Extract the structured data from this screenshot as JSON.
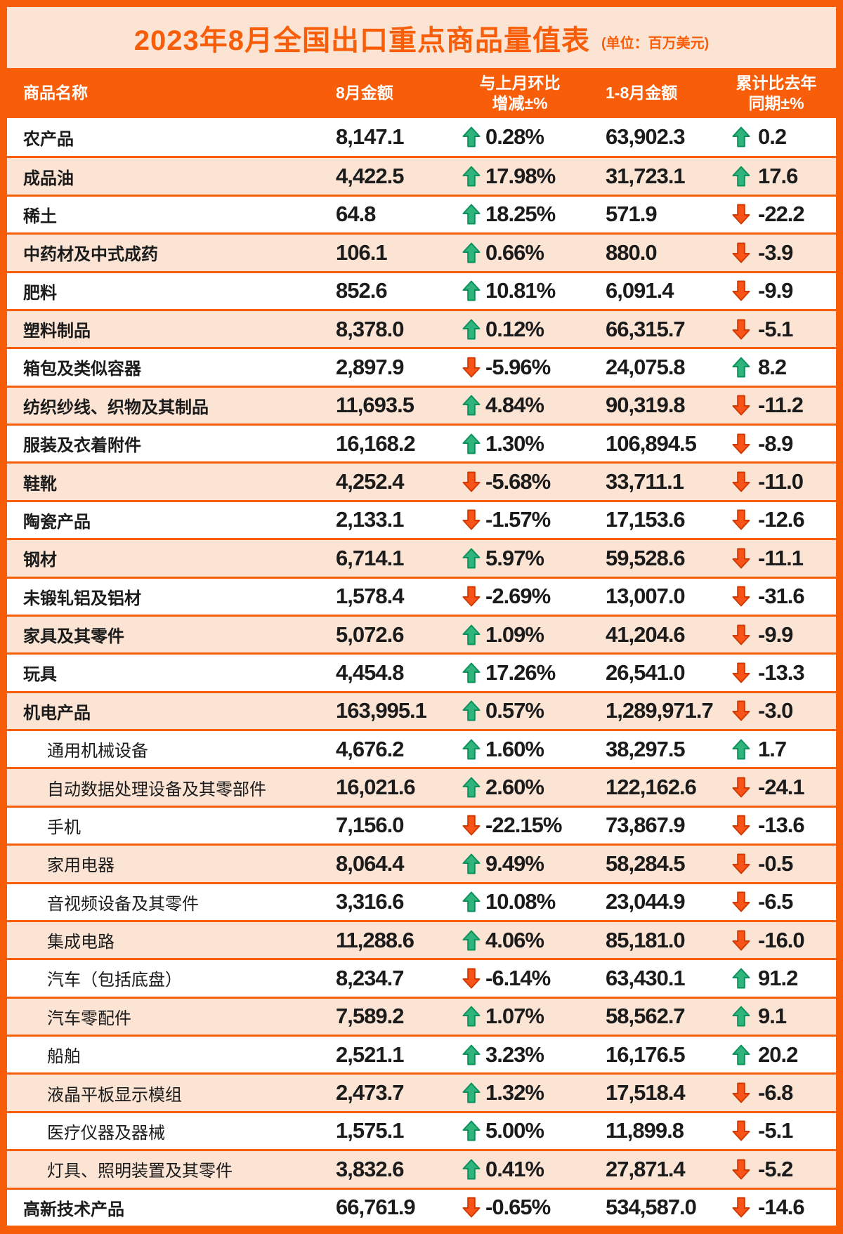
{
  "title": {
    "text": "2023年8月全国出口重点商品量值表",
    "unit": "(单位：百万美元)"
  },
  "header": {
    "col_name": "商品名称",
    "col_aug": "8月金额",
    "col_mom_line1": "与上月环比",
    "col_mom_line2": "增减±%",
    "col_ytd": "1-8月金额",
    "col_yoy_line1": "累计比去年",
    "col_yoy_line2": "同期±%"
  },
  "colors": {
    "orange": "#F85E09",
    "peach": "#FCE4D5",
    "up_green": "#2FB57C",
    "up_green_stroke": "#0D8F5B",
    "down_orange": "#F95318",
    "down_orange_stroke": "#CE3A02",
    "text": "#1B1B1B",
    "header_text": "#FFFFFF"
  },
  "chart_data": {
    "type": "table",
    "title": "2023年8月全国出口重点商品量值表",
    "unit": "百万美元",
    "columns": [
      "商品名称",
      "8月金额",
      "与上月环比增减±%",
      "1-8月金额",
      "累计比去年同期±%"
    ],
    "rows": [
      {
        "name": "农产品",
        "indent": false,
        "aug": "8,147.1",
        "mom": "0.28%",
        "mom_dir": "up",
        "ytd": "63,902.3",
        "yoy": "0.2",
        "yoy_dir": "up"
      },
      {
        "name": "成品油",
        "indent": false,
        "aug": "4,422.5",
        "mom": "17.98%",
        "mom_dir": "up",
        "ytd": "31,723.1",
        "yoy": "17.6",
        "yoy_dir": "up"
      },
      {
        "name": "稀土",
        "indent": false,
        "aug": "64.8",
        "mom": "18.25%",
        "mom_dir": "up",
        "ytd": "571.9",
        "yoy": "-22.2",
        "yoy_dir": "down"
      },
      {
        "name": "中药材及中式成药",
        "indent": false,
        "aug": "106.1",
        "mom": "0.66%",
        "mom_dir": "up",
        "ytd": "880.0",
        "yoy": "-3.9",
        "yoy_dir": "down"
      },
      {
        "name": "肥料",
        "indent": false,
        "aug": "852.6",
        "mom": "10.81%",
        "mom_dir": "up",
        "ytd": "6,091.4",
        "yoy": "-9.9",
        "yoy_dir": "down"
      },
      {
        "name": "塑料制品",
        "indent": false,
        "aug": "8,378.0",
        "mom": "0.12%",
        "mom_dir": "up",
        "ytd": "66,315.7",
        "yoy": "-5.1",
        "yoy_dir": "down"
      },
      {
        "name": "箱包及类似容器",
        "indent": false,
        "aug": "2,897.9",
        "mom": "-5.96%",
        "mom_dir": "down",
        "ytd": "24,075.8",
        "yoy": "8.2",
        "yoy_dir": "up"
      },
      {
        "name": "纺织纱线、织物及其制品",
        "indent": false,
        "aug": "11,693.5",
        "mom": "4.84%",
        "mom_dir": "up",
        "ytd": "90,319.8",
        "yoy": "-11.2",
        "yoy_dir": "down"
      },
      {
        "name": "服装及衣着附件",
        "indent": false,
        "aug": "16,168.2",
        "mom": "1.30%",
        "mom_dir": "up",
        "ytd": "106,894.5",
        "yoy": "-8.9",
        "yoy_dir": "down"
      },
      {
        "name": "鞋靴",
        "indent": false,
        "aug": "4,252.4",
        "mom": "-5.68%",
        "mom_dir": "down",
        "ytd": "33,711.1",
        "yoy": "-11.0",
        "yoy_dir": "down"
      },
      {
        "name": "陶瓷产品",
        "indent": false,
        "aug": "2,133.1",
        "mom": "-1.57%",
        "mom_dir": "down",
        "ytd": "17,153.6",
        "yoy": "-12.6",
        "yoy_dir": "down"
      },
      {
        "name": "钢材",
        "indent": false,
        "aug": "6,714.1",
        "mom": "5.97%",
        "mom_dir": "up",
        "ytd": "59,528.6",
        "yoy": "-11.1",
        "yoy_dir": "down"
      },
      {
        "name": "未锻轧铝及铝材",
        "indent": false,
        "aug": "1,578.4",
        "mom": "-2.69%",
        "mom_dir": "down",
        "ytd": "13,007.0",
        "yoy": "-31.6",
        "yoy_dir": "down"
      },
      {
        "name": "家具及其零件",
        "indent": false,
        "aug": "5,072.6",
        "mom": "1.09%",
        "mom_dir": "up",
        "ytd": "41,204.6",
        "yoy": "-9.9",
        "yoy_dir": "down"
      },
      {
        "name": "玩具",
        "indent": false,
        "aug": "4,454.8",
        "mom": "17.26%",
        "mom_dir": "up",
        "ytd": "26,541.0",
        "yoy": "-13.3",
        "yoy_dir": "down"
      },
      {
        "name": "机电产品",
        "indent": false,
        "aug": "163,995.1",
        "mom": "0.57%",
        "mom_dir": "up",
        "ytd": "1,289,971.7",
        "yoy": "-3.0",
        "yoy_dir": "down"
      },
      {
        "name": "通用机械设备",
        "indent": true,
        "aug": "4,676.2",
        "mom": "1.60%",
        "mom_dir": "up",
        "ytd": "38,297.5",
        "yoy": "1.7",
        "yoy_dir": "up"
      },
      {
        "name": "自动数据处理设备及其零部件",
        "indent": true,
        "aug": "16,021.6",
        "mom": "2.60%",
        "mom_dir": "up",
        "ytd": "122,162.6",
        "yoy": "-24.1",
        "yoy_dir": "down"
      },
      {
        "name": "手机",
        "indent": true,
        "aug": "7,156.0",
        "mom": "-22.15%",
        "mom_dir": "down",
        "ytd": "73,867.9",
        "yoy": "-13.6",
        "yoy_dir": "down"
      },
      {
        "name": "家用电器",
        "indent": true,
        "aug": "8,064.4",
        "mom": "9.49%",
        "mom_dir": "up",
        "ytd": "58,284.5",
        "yoy": "-0.5",
        "yoy_dir": "down"
      },
      {
        "name": "音视频设备及其零件",
        "indent": true,
        "aug": "3,316.6",
        "mom": "10.08%",
        "mom_dir": "up",
        "ytd": "23,044.9",
        "yoy": "-6.5",
        "yoy_dir": "down"
      },
      {
        "name": "集成电路",
        "indent": true,
        "aug": "11,288.6",
        "mom": "4.06%",
        "mom_dir": "up",
        "ytd": "85,181.0",
        "yoy": "-16.0",
        "yoy_dir": "down"
      },
      {
        "name": "汽车（包括底盘）",
        "indent": true,
        "aug": "8,234.7",
        "mom": "-6.14%",
        "mom_dir": "down",
        "ytd": "63,430.1",
        "yoy": "91.2",
        "yoy_dir": "up"
      },
      {
        "name": "汽车零配件",
        "indent": true,
        "aug": "7,589.2",
        "mom": "1.07%",
        "mom_dir": "up",
        "ytd": "58,562.7",
        "yoy": "9.1",
        "yoy_dir": "up"
      },
      {
        "name": "船舶",
        "indent": true,
        "aug": "2,521.1",
        "mom": "3.23%",
        "mom_dir": "up",
        "ytd": "16,176.5",
        "yoy": "20.2",
        "yoy_dir": "up"
      },
      {
        "name": "液晶平板显示模组",
        "indent": true,
        "aug": "2,473.7",
        "mom": "1.32%",
        "mom_dir": "up",
        "ytd": "17,518.4",
        "yoy": "-6.8",
        "yoy_dir": "down"
      },
      {
        "name": "医疗仪器及器械",
        "indent": true,
        "aug": "1,575.1",
        "mom": "5.00%",
        "mom_dir": "up",
        "ytd": "11,899.8",
        "yoy": "-5.1",
        "yoy_dir": "down"
      },
      {
        "name": "灯具、照明装置及其零件",
        "indent": true,
        "aug": "3,832.6",
        "mom": "0.41%",
        "mom_dir": "up",
        "ytd": "27,871.4",
        "yoy": "-5.2",
        "yoy_dir": "down"
      },
      {
        "name": "高新技术产品",
        "indent": false,
        "aug": "66,761.9",
        "mom": "-0.65%",
        "mom_dir": "down",
        "ytd": "534,587.0",
        "yoy": "-14.6",
        "yoy_dir": "down"
      }
    ]
  }
}
